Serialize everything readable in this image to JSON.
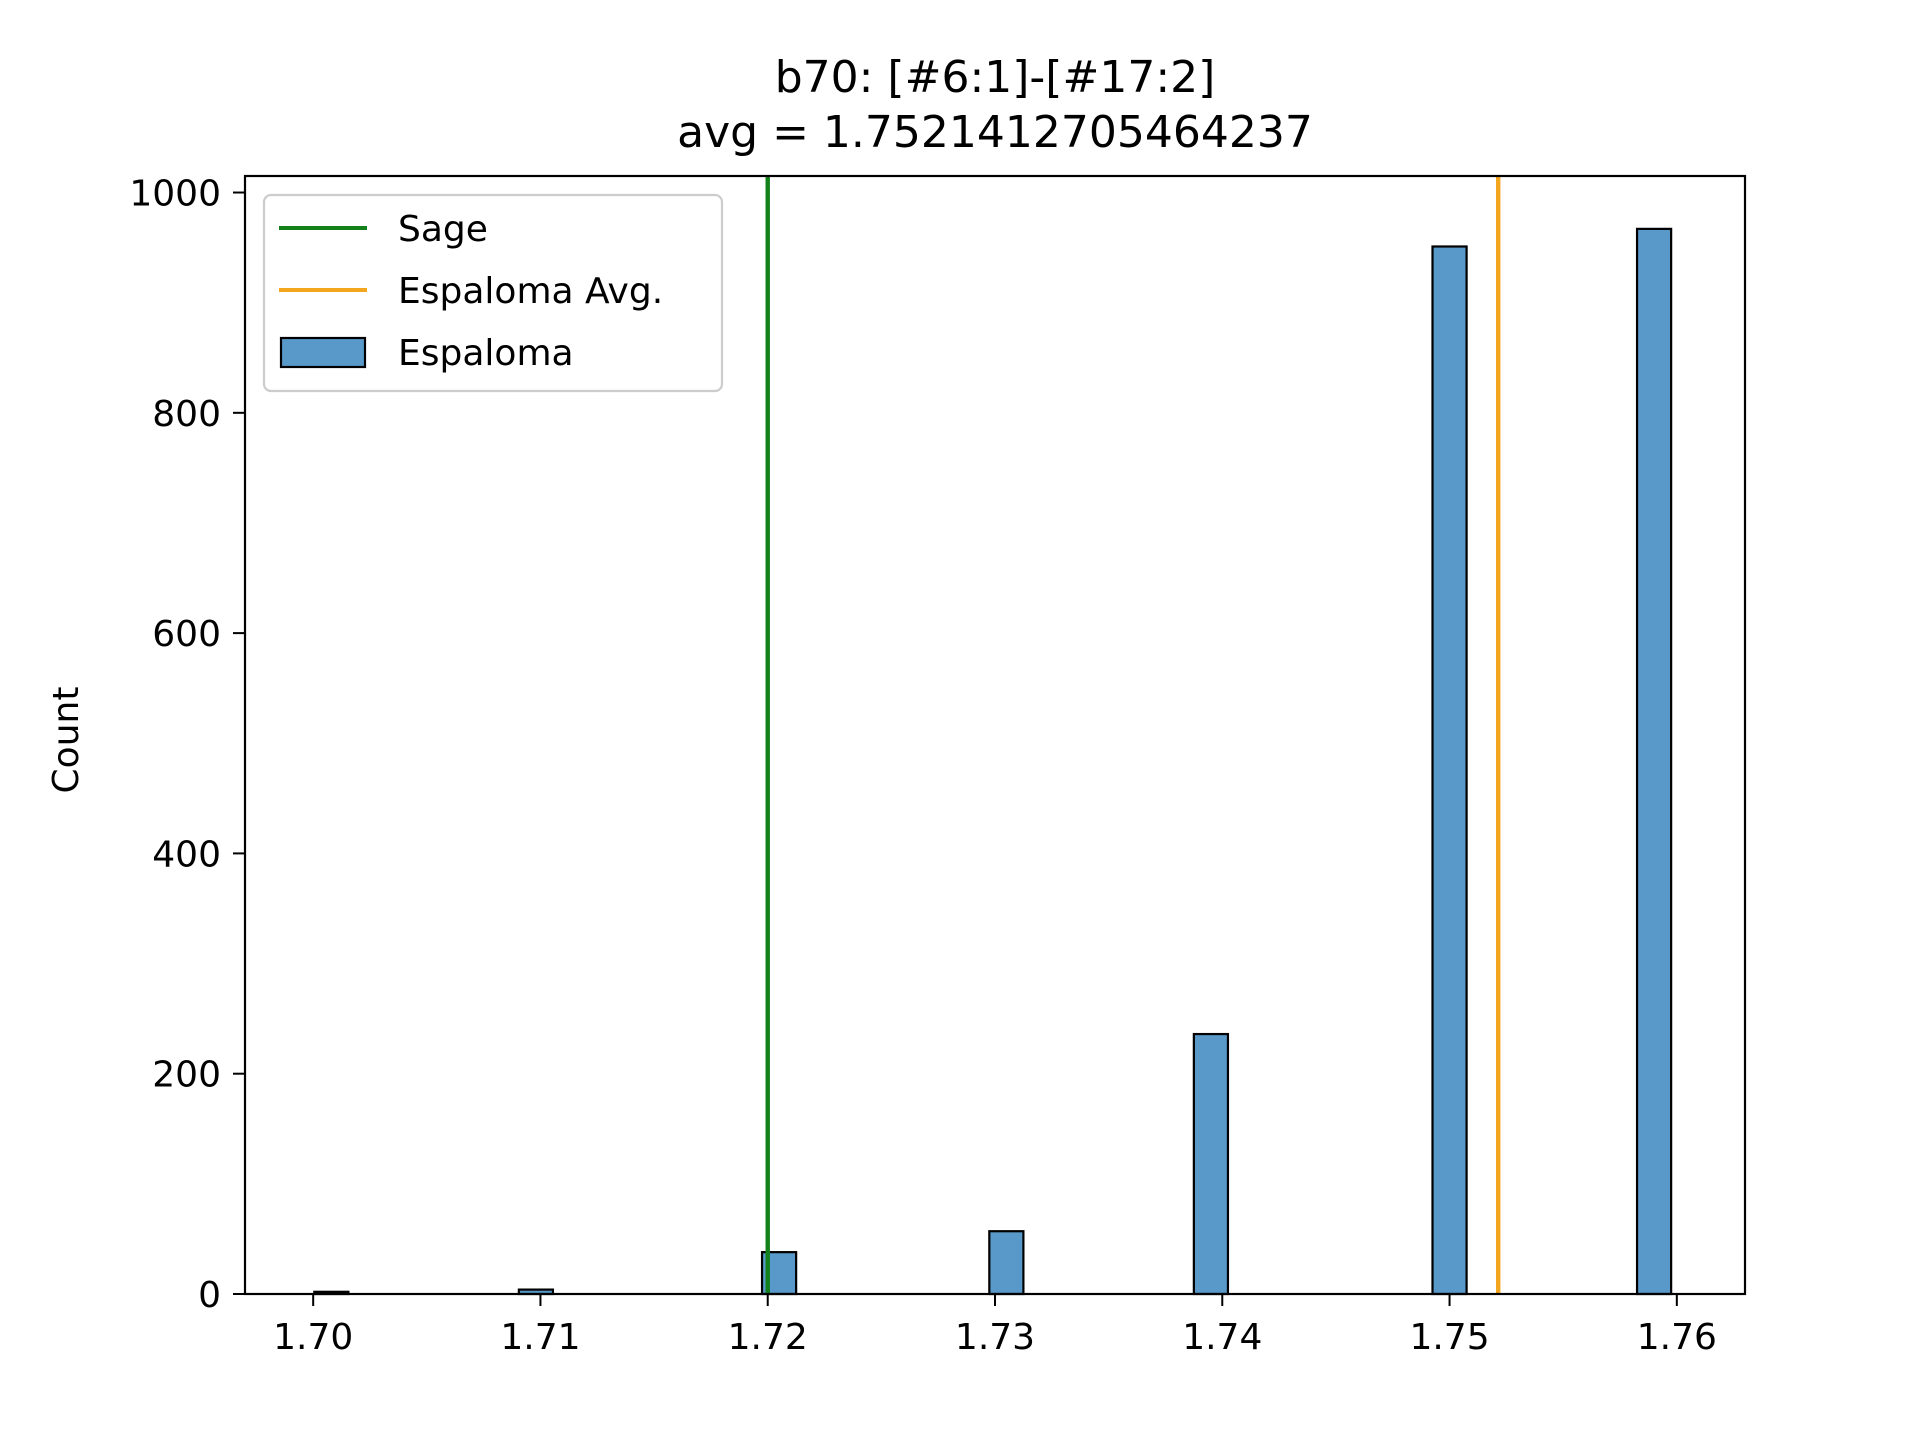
{
  "chart_data": {
    "type": "bar",
    "title": "b70: [#6:1]-[#17:2]",
    "subtitle": "avg = 1.7521412705464237",
    "ylabel": "Count",
    "xlabel": "",
    "xlim": [
      1.697,
      1.763
    ],
    "ylim": [
      0,
      1015
    ],
    "x_ticks": [
      "1.70",
      "1.71",
      "1.72",
      "1.73",
      "1.74",
      "1.75",
      "1.76"
    ],
    "y_ticks": [
      "0",
      "200",
      "400",
      "600",
      "800",
      "1000"
    ],
    "grid": false,
    "legend_position": "top-left",
    "bar_width": 0.0015,
    "series": [
      {
        "name": "Espaloma",
        "color": "#5899c9",
        "x": [
          1.7008,
          1.7098,
          1.7205,
          1.7305,
          1.7395,
          1.75,
          1.759
        ],
        "values": [
          2,
          4,
          38,
          57,
          236,
          951,
          967
        ]
      }
    ],
    "vlines": [
      {
        "name": "Sage",
        "x": 1.72,
        "color": "#12811a"
      },
      {
        "name": "Espaloma Avg.",
        "x": 1.7521412705464237,
        "color": "#f2a51d"
      }
    ],
    "legend": [
      "Sage",
      "Espaloma Avg.",
      "Espaloma"
    ]
  }
}
